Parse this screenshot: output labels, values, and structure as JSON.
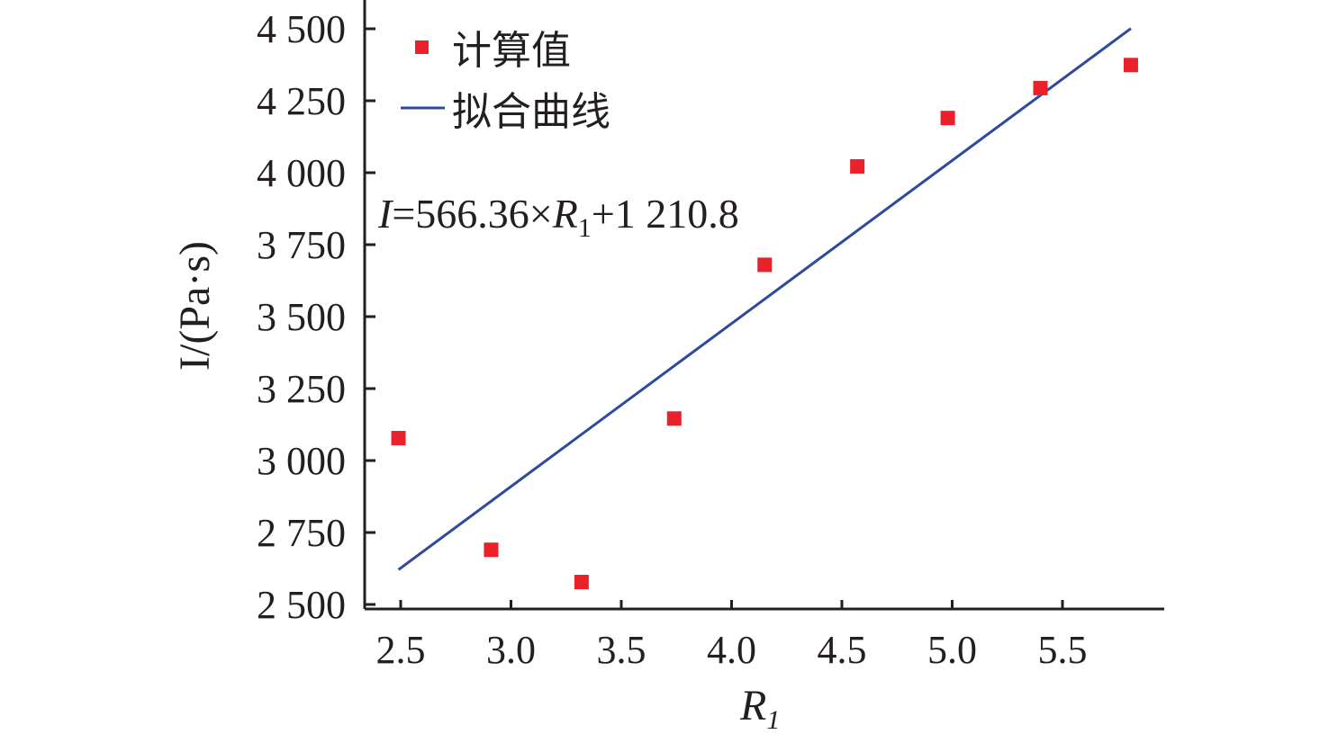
{
  "chart_data": {
    "type": "scatter",
    "xlabel": "R",
    "xlabel_sub": "1",
    "ylabel": "I/(Pa·s)",
    "xlim": [
      2.4,
      6.0
    ],
    "ylim": [
      2480,
      4600
    ],
    "x_ticks": [
      2.5,
      3.0,
      3.5,
      4.0,
      4.5,
      5.0,
      5.5
    ],
    "x_tick_labels": [
      "2.5",
      "3.0",
      "3.5",
      "4.0",
      "4.5",
      "5.0",
      "5.5"
    ],
    "y_ticks": [
      2500,
      2750,
      3000,
      3250,
      3500,
      3750,
      4000,
      4250,
      4500
    ],
    "y_tick_labels": [
      "2 500",
      "2 750",
      "3 000",
      "3 250",
      "3 500",
      "3 750",
      "4 000",
      "4 250",
      "4 500"
    ],
    "legend_position": "top-left",
    "grid": false,
    "series": [
      {
        "name": "计算值",
        "kind": "scatter",
        "marker": "square",
        "color": "#e8212a",
        "x": [
          2.49,
          2.91,
          3.32,
          3.74,
          4.15,
          4.57,
          4.98,
          5.4,
          5.81
        ],
        "y": [
          3078,
          2690,
          2578,
          3146,
          3680,
          4022,
          4190,
          4294,
          4374
        ]
      },
      {
        "name": "拟合曲线",
        "kind": "line",
        "color": "#2e4a9e",
        "x": [
          2.49,
          5.81
        ],
        "y": [
          2621,
          4501
        ]
      }
    ],
    "annotation": {
      "prefix": "I",
      "middle": "=566.36×",
      "var": "R",
      "var_sub": "1",
      "suffix": "+1 210.8"
    }
  }
}
